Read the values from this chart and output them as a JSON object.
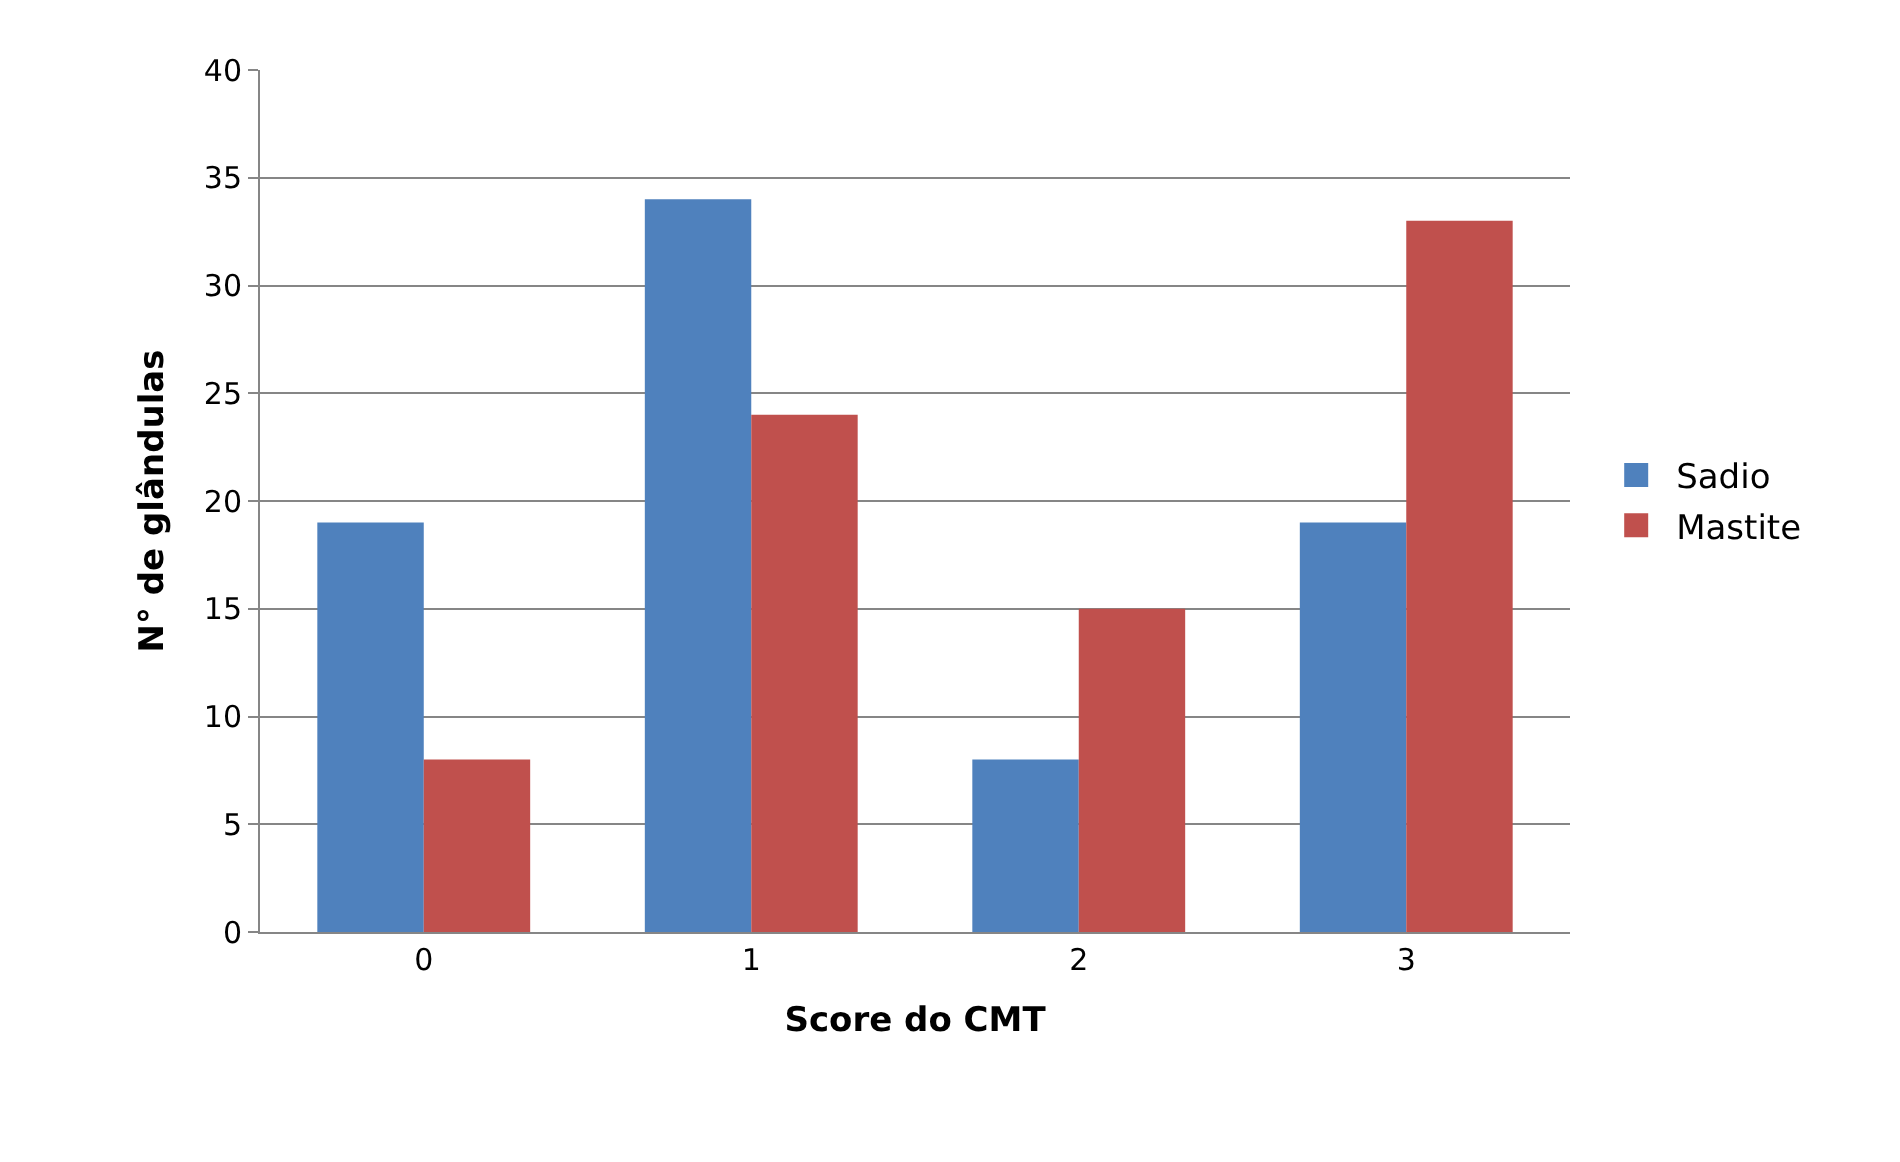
{
  "chart_data": {
    "type": "bar",
    "xlabel": "Score do CMT",
    "ylabel": "N° de glândulas",
    "categories": [
      "0",
      "1",
      "2",
      "3"
    ],
    "series": [
      {
        "name": "Sadio",
        "color": "#4f81bd",
        "values": [
          19,
          34,
          8,
          19
        ]
      },
      {
        "name": "Mastite",
        "color": "#c0504d",
        "values": [
          8,
          24,
          15,
          33
        ]
      }
    ],
    "ylim": [
      0,
      40
    ],
    "yticks": [
      0,
      5,
      10,
      15,
      20,
      25,
      30,
      35,
      40
    ],
    "grid": "y",
    "legend": "right"
  }
}
